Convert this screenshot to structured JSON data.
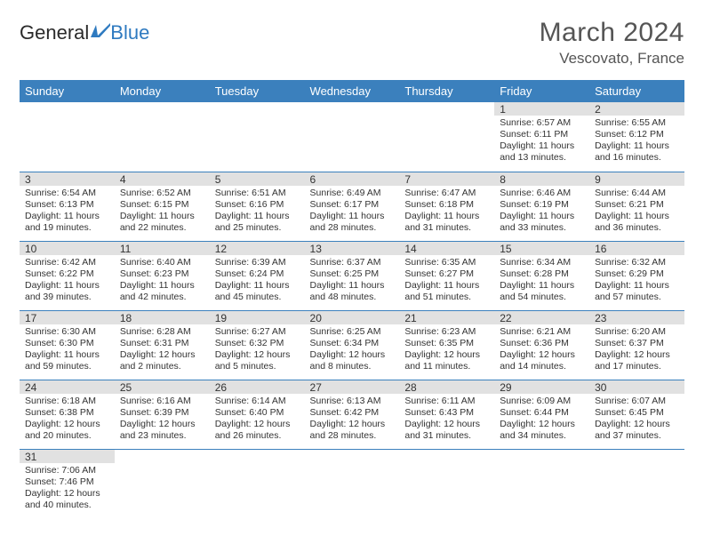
{
  "logo": {
    "text_general": "General",
    "text_blue": "Blue"
  },
  "header": {
    "month_title": "March 2024",
    "location": "Vescovato, France"
  },
  "colors": {
    "header_bg": "#3b80bd",
    "daynum_bg": "#e1e1e1",
    "row_border": "#3b80bd"
  },
  "weekdays": [
    "Sunday",
    "Monday",
    "Tuesday",
    "Wednesday",
    "Thursday",
    "Friday",
    "Saturday"
  ],
  "weeks": [
    [
      {
        "day": "",
        "sunrise": "",
        "sunset": "",
        "daylight": ""
      },
      {
        "day": "",
        "sunrise": "",
        "sunset": "",
        "daylight": ""
      },
      {
        "day": "",
        "sunrise": "",
        "sunset": "",
        "daylight": ""
      },
      {
        "day": "",
        "sunrise": "",
        "sunset": "",
        "daylight": ""
      },
      {
        "day": "",
        "sunrise": "",
        "sunset": "",
        "daylight": ""
      },
      {
        "day": "1",
        "sunrise": "Sunrise: 6:57 AM",
        "sunset": "Sunset: 6:11 PM",
        "daylight": "Daylight: 11 hours and 13 minutes."
      },
      {
        "day": "2",
        "sunrise": "Sunrise: 6:55 AM",
        "sunset": "Sunset: 6:12 PM",
        "daylight": "Daylight: 11 hours and 16 minutes."
      }
    ],
    [
      {
        "day": "3",
        "sunrise": "Sunrise: 6:54 AM",
        "sunset": "Sunset: 6:13 PM",
        "daylight": "Daylight: 11 hours and 19 minutes."
      },
      {
        "day": "4",
        "sunrise": "Sunrise: 6:52 AM",
        "sunset": "Sunset: 6:15 PM",
        "daylight": "Daylight: 11 hours and 22 minutes."
      },
      {
        "day": "5",
        "sunrise": "Sunrise: 6:51 AM",
        "sunset": "Sunset: 6:16 PM",
        "daylight": "Daylight: 11 hours and 25 minutes."
      },
      {
        "day": "6",
        "sunrise": "Sunrise: 6:49 AM",
        "sunset": "Sunset: 6:17 PM",
        "daylight": "Daylight: 11 hours and 28 minutes."
      },
      {
        "day": "7",
        "sunrise": "Sunrise: 6:47 AM",
        "sunset": "Sunset: 6:18 PM",
        "daylight": "Daylight: 11 hours and 31 minutes."
      },
      {
        "day": "8",
        "sunrise": "Sunrise: 6:46 AM",
        "sunset": "Sunset: 6:19 PM",
        "daylight": "Daylight: 11 hours and 33 minutes."
      },
      {
        "day": "9",
        "sunrise": "Sunrise: 6:44 AM",
        "sunset": "Sunset: 6:21 PM",
        "daylight": "Daylight: 11 hours and 36 minutes."
      }
    ],
    [
      {
        "day": "10",
        "sunrise": "Sunrise: 6:42 AM",
        "sunset": "Sunset: 6:22 PM",
        "daylight": "Daylight: 11 hours and 39 minutes."
      },
      {
        "day": "11",
        "sunrise": "Sunrise: 6:40 AM",
        "sunset": "Sunset: 6:23 PM",
        "daylight": "Daylight: 11 hours and 42 minutes."
      },
      {
        "day": "12",
        "sunrise": "Sunrise: 6:39 AM",
        "sunset": "Sunset: 6:24 PM",
        "daylight": "Daylight: 11 hours and 45 minutes."
      },
      {
        "day": "13",
        "sunrise": "Sunrise: 6:37 AM",
        "sunset": "Sunset: 6:25 PM",
        "daylight": "Daylight: 11 hours and 48 minutes."
      },
      {
        "day": "14",
        "sunrise": "Sunrise: 6:35 AM",
        "sunset": "Sunset: 6:27 PM",
        "daylight": "Daylight: 11 hours and 51 minutes."
      },
      {
        "day": "15",
        "sunrise": "Sunrise: 6:34 AM",
        "sunset": "Sunset: 6:28 PM",
        "daylight": "Daylight: 11 hours and 54 minutes."
      },
      {
        "day": "16",
        "sunrise": "Sunrise: 6:32 AM",
        "sunset": "Sunset: 6:29 PM",
        "daylight": "Daylight: 11 hours and 57 minutes."
      }
    ],
    [
      {
        "day": "17",
        "sunrise": "Sunrise: 6:30 AM",
        "sunset": "Sunset: 6:30 PM",
        "daylight": "Daylight: 11 hours and 59 minutes."
      },
      {
        "day": "18",
        "sunrise": "Sunrise: 6:28 AM",
        "sunset": "Sunset: 6:31 PM",
        "daylight": "Daylight: 12 hours and 2 minutes."
      },
      {
        "day": "19",
        "sunrise": "Sunrise: 6:27 AM",
        "sunset": "Sunset: 6:32 PM",
        "daylight": "Daylight: 12 hours and 5 minutes."
      },
      {
        "day": "20",
        "sunrise": "Sunrise: 6:25 AM",
        "sunset": "Sunset: 6:34 PM",
        "daylight": "Daylight: 12 hours and 8 minutes."
      },
      {
        "day": "21",
        "sunrise": "Sunrise: 6:23 AM",
        "sunset": "Sunset: 6:35 PM",
        "daylight": "Daylight: 12 hours and 11 minutes."
      },
      {
        "day": "22",
        "sunrise": "Sunrise: 6:21 AM",
        "sunset": "Sunset: 6:36 PM",
        "daylight": "Daylight: 12 hours and 14 minutes."
      },
      {
        "day": "23",
        "sunrise": "Sunrise: 6:20 AM",
        "sunset": "Sunset: 6:37 PM",
        "daylight": "Daylight: 12 hours and 17 minutes."
      }
    ],
    [
      {
        "day": "24",
        "sunrise": "Sunrise: 6:18 AM",
        "sunset": "Sunset: 6:38 PM",
        "daylight": "Daylight: 12 hours and 20 minutes."
      },
      {
        "day": "25",
        "sunrise": "Sunrise: 6:16 AM",
        "sunset": "Sunset: 6:39 PM",
        "daylight": "Daylight: 12 hours and 23 minutes."
      },
      {
        "day": "26",
        "sunrise": "Sunrise: 6:14 AM",
        "sunset": "Sunset: 6:40 PM",
        "daylight": "Daylight: 12 hours and 26 minutes."
      },
      {
        "day": "27",
        "sunrise": "Sunrise: 6:13 AM",
        "sunset": "Sunset: 6:42 PM",
        "daylight": "Daylight: 12 hours and 28 minutes."
      },
      {
        "day": "28",
        "sunrise": "Sunrise: 6:11 AM",
        "sunset": "Sunset: 6:43 PM",
        "daylight": "Daylight: 12 hours and 31 minutes."
      },
      {
        "day": "29",
        "sunrise": "Sunrise: 6:09 AM",
        "sunset": "Sunset: 6:44 PM",
        "daylight": "Daylight: 12 hours and 34 minutes."
      },
      {
        "day": "30",
        "sunrise": "Sunrise: 6:07 AM",
        "sunset": "Sunset: 6:45 PM",
        "daylight": "Daylight: 12 hours and 37 minutes."
      }
    ],
    [
      {
        "day": "31",
        "sunrise": "Sunrise: 7:06 AM",
        "sunset": "Sunset: 7:46 PM",
        "daylight": "Daylight: 12 hours and 40 minutes."
      },
      {
        "day": "",
        "sunrise": "",
        "sunset": "",
        "daylight": ""
      },
      {
        "day": "",
        "sunrise": "",
        "sunset": "",
        "daylight": ""
      },
      {
        "day": "",
        "sunrise": "",
        "sunset": "",
        "daylight": ""
      },
      {
        "day": "",
        "sunrise": "",
        "sunset": "",
        "daylight": ""
      },
      {
        "day": "",
        "sunrise": "",
        "sunset": "",
        "daylight": ""
      },
      {
        "day": "",
        "sunrise": "",
        "sunset": "",
        "daylight": ""
      }
    ]
  ]
}
